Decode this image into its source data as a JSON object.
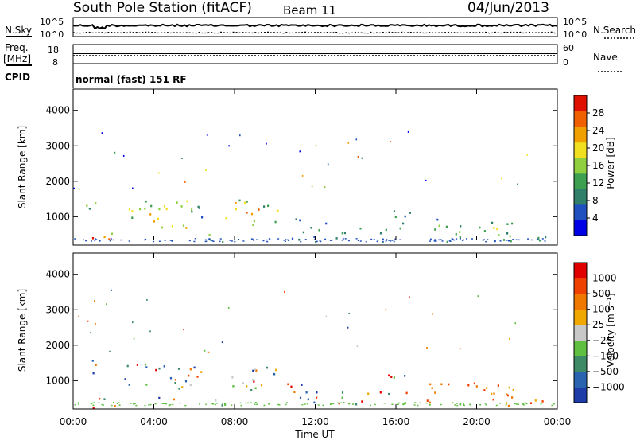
{
  "header": {
    "station": "South Pole Station (fitACF)",
    "beam": "Beam 11",
    "date": "04/Jun/2013"
  },
  "top_panels": {
    "nsky_label": "N.Sky",
    "nsearch_label": "N.Search",
    "noise_ticks": [
      "10^5",
      "10^0"
    ],
    "freq_label_1": "Freq.",
    "freq_label_2": "[MHz]",
    "freq_ticks": [
      "18",
      "8"
    ],
    "nave_label": "Nave",
    "nave_ticks": [
      "60",
      "0"
    ],
    "cpid_label": "CPID",
    "cpid_text": "normal (fast) 151 RF"
  },
  "chart_data": [
    {
      "type": "heatmap",
      "name": "power",
      "ylabel": "Slant Range [km]",
      "y_ticks": [
        "4000",
        "3000",
        "2000",
        "1000"
      ],
      "y_values": [
        4000,
        3000,
        2000,
        1000
      ],
      "ylim": [
        200,
        4600
      ],
      "colorbar_label": "Power [dB]",
      "colorbar_ticks": [
        "28",
        "24",
        "20",
        "16",
        "12",
        "8",
        "4"
      ],
      "colorbar_colors": [
        "#0000e6",
        "#2050c0",
        "#2f7f6a",
        "#3ca050",
        "#8fcf40",
        "#f0e020",
        "#f0a000",
        "#f06000",
        "#e01000"
      ]
    },
    {
      "type": "heatmap",
      "name": "velocity",
      "ylabel": "Slant Range [km]",
      "y_ticks": [
        "4000",
        "3000",
        "2000",
        "1000"
      ],
      "y_values": [
        4000,
        3000,
        2000,
        1000
      ],
      "ylim": [
        200,
        4600
      ],
      "colorbar_label": "Velocity [m s⁻¹]",
      "colorbar_ticks": [
        "1000",
        "500",
        "100",
        "25",
        "−25",
        "−100",
        "−500",
        "−1000"
      ],
      "colorbar_colors": [
        "#1e3ca8",
        "#2a64b0",
        "#3e8a66",
        "#5fbf40",
        "#c8c8c8",
        "#f0a800",
        "#f07800",
        "#f04000",
        "#e00000"
      ]
    }
  ],
  "x_axis": {
    "label": "Time UT",
    "ticks": [
      "00:00",
      "04:00",
      "08:00",
      "12:00",
      "16:00",
      "20:00",
      "00:00"
    ],
    "hours": [
      0,
      4,
      8,
      12,
      16,
      20,
      24
    ]
  }
}
